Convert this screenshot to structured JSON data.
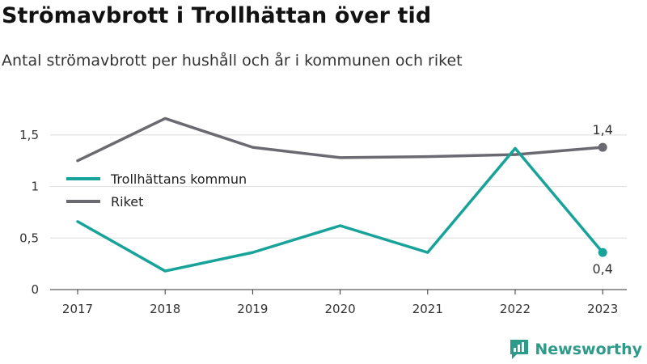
{
  "header": {
    "title": "Strömavbrott i Trollhättan över tid",
    "subtitle": "Antal strömavbrott per hushåll och år i kommunen och riket"
  },
  "brand": {
    "name": "Newsworthy",
    "icon": "bar-chart-logo-icon",
    "color": "#2e9b8a"
  },
  "chart_data": {
    "type": "line",
    "title": "Strömavbrott i Trollhättan över tid",
    "subtitle": "Antal strömavbrott per hushåll och år i kommunen och riket",
    "xlabel": "",
    "ylabel": "",
    "x": [
      "2017",
      "2018",
      "2019",
      "2020",
      "2021",
      "2022",
      "2023"
    ],
    "ylim": [
      0,
      1.75
    ],
    "yticks": [
      0,
      0.5,
      1,
      1.5
    ],
    "ytick_labels": [
      "0",
      "0,5",
      "1",
      "1,5"
    ],
    "grid": true,
    "legend": "left",
    "series": [
      {
        "name": "Trollhättans kommun",
        "color": "#18a39a",
        "values": [
          0.66,
          0.18,
          0.36,
          0.62,
          0.36,
          1.37,
          0.36
        ],
        "end_label": "0,4"
      },
      {
        "name": "Riket",
        "color": "#6b6a72",
        "values": [
          1.25,
          1.66,
          1.38,
          1.28,
          1.29,
          1.31,
          1.38
        ],
        "end_label": "1,4"
      }
    ]
  }
}
